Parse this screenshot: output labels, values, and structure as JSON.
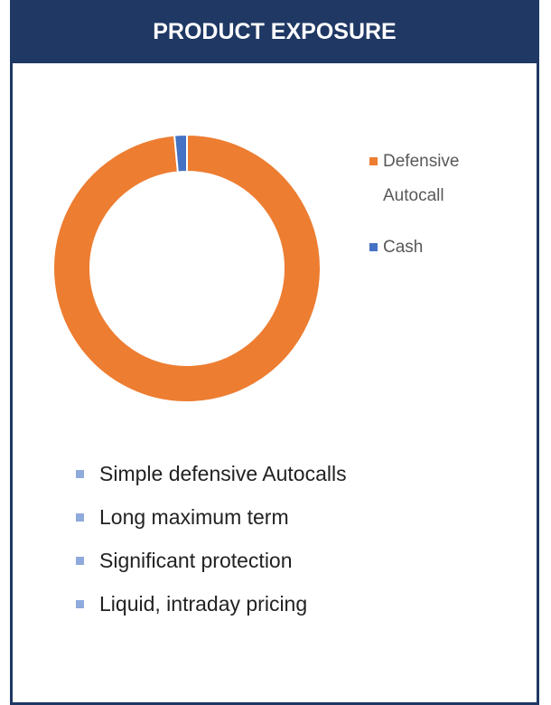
{
  "header": {
    "title": "PRODUCT EXPOSURE"
  },
  "chart_data": {
    "type": "pie",
    "donut": true,
    "categories": [
      "Defensive Autocall",
      "Cash"
    ],
    "values": [
      98.5,
      1.5
    ],
    "colors": [
      "#ed7d31",
      "#4472c4"
    ],
    "legend": "right"
  },
  "bullets": [
    "Simple defensive Autocalls",
    "Long maximum term",
    "Significant protection",
    "Liquid, intraday pricing"
  ]
}
